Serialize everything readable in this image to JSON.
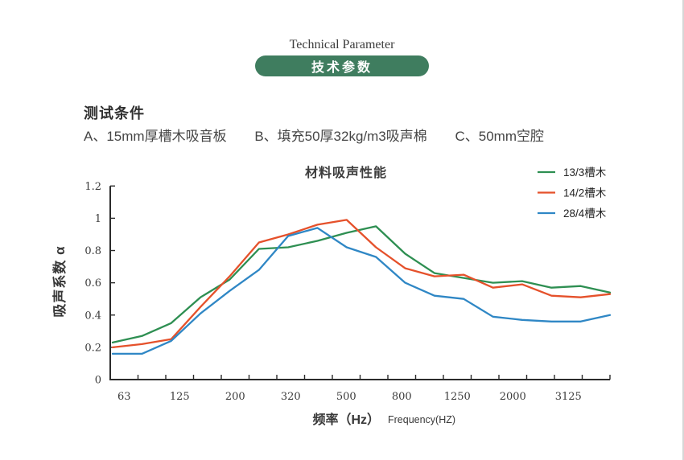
{
  "page": {
    "header_title": "Technical Parameter",
    "badge": "技术参数"
  },
  "conditions": {
    "heading": "测试条件",
    "items": [
      "A、15mm厚槽木吸音板",
      "B、填充50厚32kg/m3吸声棉",
      "C、50mm空腔"
    ]
  },
  "chart_data": {
    "type": "line",
    "title": "材料吸声性能",
    "xlabel_cn": "频率（Hz）",
    "xlabel_en": "Frequency(HZ)",
    "ylabel": "吸声系数 α",
    "x_tick_labels": [
      "63",
      "125",
      "200",
      "320",
      "500",
      "800",
      "1250",
      "2000",
      "3125"
    ],
    "y_tick_labels": [
      "0",
      "0.2",
      "0.4",
      "0.6",
      "0.8",
      "1",
      "1.2"
    ],
    "ylim": [
      0,
      1.2
    ],
    "n_points": 18,
    "x_note": "18 evenly spaced points; labels sit under every other tick, last tick unlabeled",
    "grid": false,
    "legend_position": "top-right",
    "axis_color": "#2b2b2b",
    "series": [
      {
        "name": "13/3槽木",
        "color": "#2e8f52",
        "values": [
          0.23,
          0.27,
          0.35,
          0.51,
          0.62,
          0.81,
          0.82,
          0.86,
          0.91,
          0.95,
          0.78,
          0.66,
          0.63,
          0.6,
          0.61,
          0.57,
          0.58,
          0.54
        ]
      },
      {
        "name": "14/2槽木",
        "color": "#e5512b",
        "values": [
          0.2,
          0.22,
          0.25,
          0.45,
          0.64,
          0.85,
          0.9,
          0.96,
          0.99,
          0.82,
          0.69,
          0.64,
          0.65,
          0.57,
          0.59,
          0.52,
          0.51,
          0.53
        ]
      },
      {
        "name": "28/4槽木",
        "color": "#2f87c5",
        "values": [
          0.16,
          0.16,
          0.24,
          0.41,
          0.55,
          0.68,
          0.89,
          0.94,
          0.82,
          0.76,
          0.6,
          0.52,
          0.5,
          0.39,
          0.37,
          0.36,
          0.36,
          0.4
        ]
      }
    ]
  }
}
